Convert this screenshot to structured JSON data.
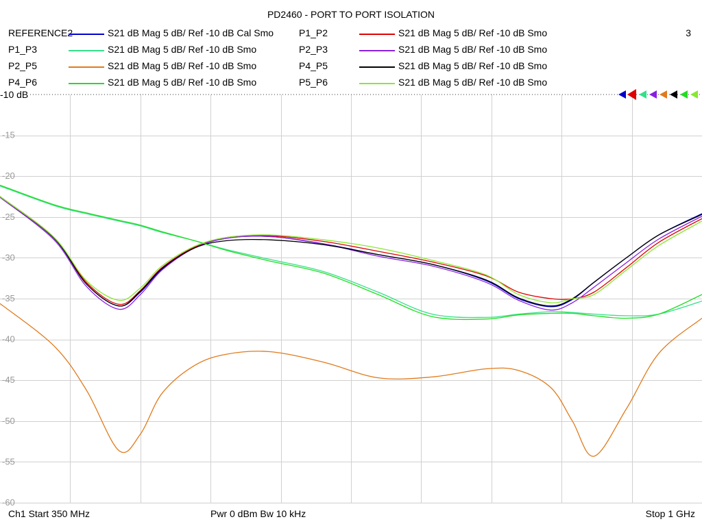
{
  "window": {
    "title": "PD2460 - PORT TO PORT ISOLATION",
    "channel_count": "3"
  },
  "traces": [
    {
      "name": "REFERENCE2",
      "desc": "S21  dB Mag  5 dB/ Ref -10 dB  Cal Smo",
      "color": "#0000cc"
    },
    {
      "name": "P1_P2",
      "desc": "S21  dB Mag  5 dB/ Ref -10 dB  Smo",
      "color": "#e00000"
    },
    {
      "name": "P1_P3",
      "desc": "S21  dB Mag  5 dB/ Ref -10 dB  Smo",
      "color": "#33e08a"
    },
    {
      "name": "P2_P3",
      "desc": "S21  dB Mag  5 dB/ Ref -10 dB  Smo",
      "color": "#8a1ee0"
    },
    {
      "name": "P2_P5",
      "desc": "S21  dB Mag  5 dB/ Ref -10 dB  Smo",
      "color": "#e07a1a"
    },
    {
      "name": "P4_P5",
      "desc": "S21  dB Mag  5 dB/ Ref -10 dB  Smo",
      "color": "#000000"
    },
    {
      "name": "P4_P6",
      "desc": "S21  dB Mag  5 dB/ Ref -10 dB  Smo",
      "color": "#22dd22"
    },
    {
      "name": "P5_P6",
      "desc": "S21  dB Mag  5 dB/ Ref -10 dB  Smo",
      "color": "#88e830"
    }
  ],
  "ref_label": "-10 dB",
  "footer": {
    "start": "Ch1  Start  350 MHz",
    "power": "Pwr  0 dBm  Bw  10 kHz",
    "stop": "Stop  1 GHz"
  },
  "chart_data": {
    "type": "line",
    "title": "PD2460 - PORT TO PORT ISOLATION",
    "xlabel": "",
    "ylabel": "",
    "xlim": [
      350,
      1000
    ],
    "ylim": [
      -60,
      -10
    ],
    "yticks": [
      -15,
      -20,
      -25,
      -30,
      -35,
      -40,
      -45,
      -50,
      -55,
      -60
    ],
    "x_unit": "MHz",
    "grid": true,
    "x": [
      350,
      400,
      430,
      460,
      480,
      500,
      530,
      560,
      600,
      650,
      700,
      750,
      800,
      830,
      860,
      880,
      900,
      930,
      960,
      1000
    ],
    "series": [
      {
        "name": "REFERENCE2",
        "color": "#0000cc",
        "values": [
          -22.5,
          -27.6,
          -33.2,
          -35.9,
          -34.2,
          -31.4,
          -28.8,
          -27.6,
          -27.4,
          -28.3,
          -29.6,
          -30.8,
          -32.8,
          -35.0,
          -36.0,
          -35.1,
          -33.0,
          -30.0,
          -27.2,
          -24.6
        ]
      },
      {
        "name": "P1_P2",
        "color": "#e00000",
        "values": [
          -22.5,
          -27.5,
          -33.0,
          -35.7,
          -34.0,
          -31.2,
          -28.7,
          -27.5,
          -27.3,
          -28.0,
          -29.2,
          -30.5,
          -32.2,
          -34.2,
          -35.0,
          -35.0,
          -34.2,
          -31.2,
          -28.1,
          -25.2
        ]
      },
      {
        "name": "P1_P3",
        "color": "#33e08a",
        "values": [
          -21.2,
          -23.6,
          -24.6,
          -25.5,
          -26.1,
          -26.9,
          -27.9,
          -29.0,
          -30.2,
          -31.7,
          -34.2,
          -36.9,
          -37.3,
          -36.9,
          -36.6,
          -36.7,
          -36.9,
          -37.1,
          -36.9,
          -35.3
        ]
      },
      {
        "name": "P2_P3",
        "color": "#8a1ee0",
        "values": [
          -22.6,
          -27.8,
          -33.5,
          -36.3,
          -34.5,
          -31.5,
          -28.8,
          -27.6,
          -27.4,
          -28.3,
          -29.8,
          -31.0,
          -33.0,
          -35.2,
          -36.4,
          -35.5,
          -33.6,
          -30.6,
          -27.7,
          -24.9
        ]
      },
      {
        "name": "P2_P5",
        "color": "#e07a1a",
        "values": [
          -35.6,
          -40.8,
          -46.2,
          -53.6,
          -51.6,
          -46.6,
          -43.2,
          -41.8,
          -41.5,
          -42.8,
          -44.7,
          -44.6,
          -43.6,
          -43.8,
          -45.9,
          -50.0,
          -54.3,
          -48.5,
          -41.7,
          -37.4
        ]
      },
      {
        "name": "P4_P5",
        "color": "#000000",
        "values": [
          -22.5,
          -27.6,
          -33.2,
          -35.9,
          -34.1,
          -31.3,
          -28.8,
          -27.9,
          -27.8,
          -28.4,
          -29.6,
          -30.8,
          -32.7,
          -34.9,
          -35.9,
          -35.0,
          -33.0,
          -30.0,
          -27.2,
          -24.7
        ]
      },
      {
        "name": "P4_P6",
        "color": "#22dd22",
        "values": [
          -21.1,
          -23.5,
          -24.5,
          -25.4,
          -26.0,
          -26.8,
          -27.9,
          -29.1,
          -30.4,
          -31.9,
          -34.5,
          -37.2,
          -37.5,
          -37.0,
          -36.8,
          -36.8,
          -37.1,
          -37.4,
          -36.9,
          -34.5
        ]
      },
      {
        "name": "P5_P6",
        "color": "#88e830",
        "values": [
          -22.5,
          -27.5,
          -32.8,
          -35.2,
          -33.7,
          -31.0,
          -28.6,
          -27.5,
          -27.2,
          -27.8,
          -28.8,
          -30.3,
          -32.1,
          -34.5,
          -35.5,
          -35.0,
          -34.5,
          -31.5,
          -28.5,
          -25.5
        ]
      }
    ]
  }
}
